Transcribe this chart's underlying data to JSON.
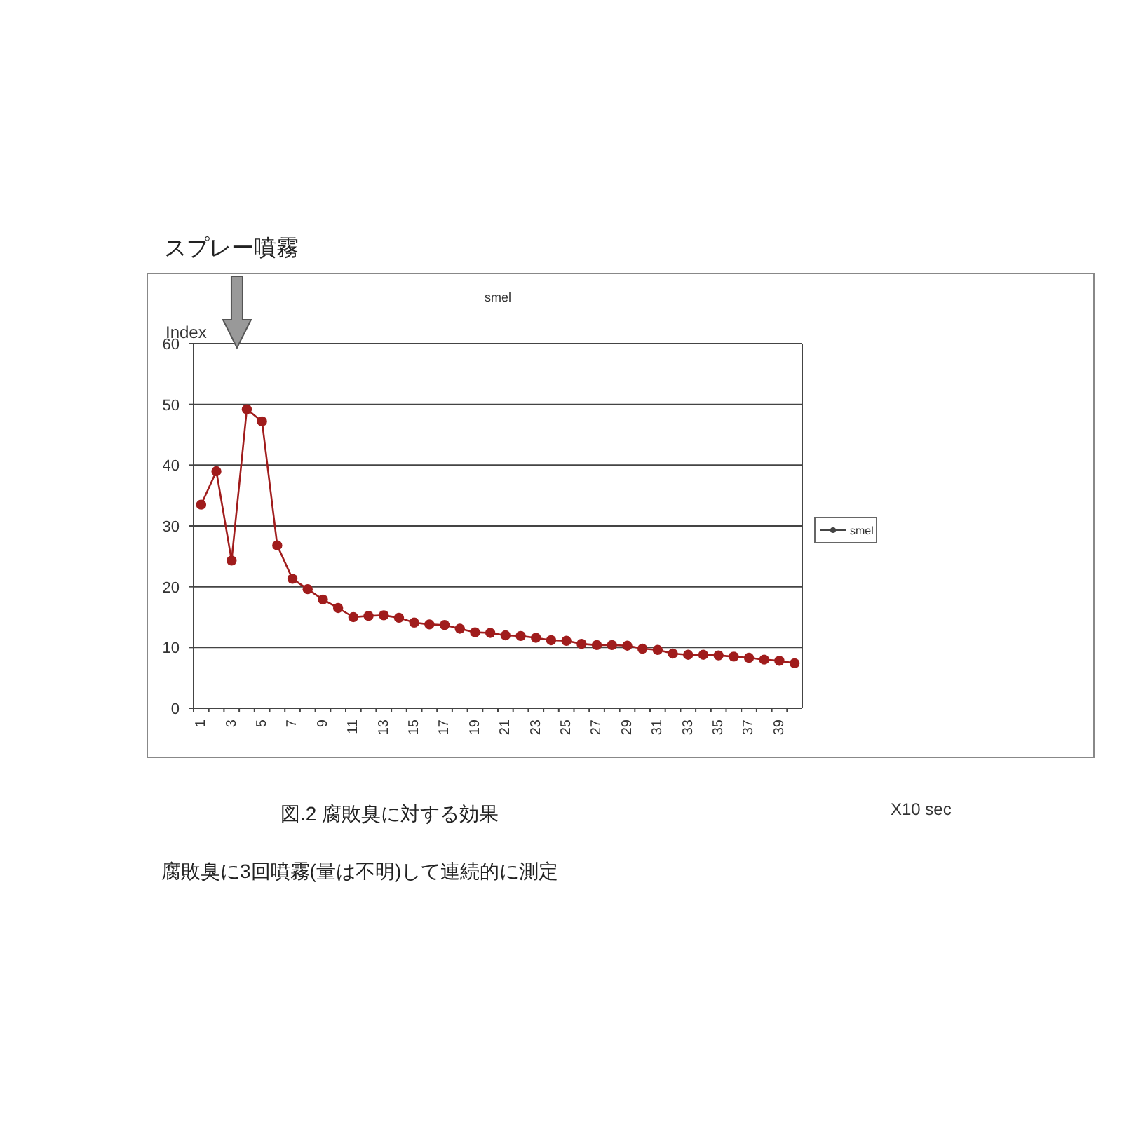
{
  "chart_data": {
    "type": "line",
    "title": "smel",
    "ylabel": "Index",
    "annotations": [
      "スプレー噴霧",
      "図.2  腐敗臭に対する効果",
      "腐敗臭に3回噴霧(量は不明)して連続的に測定",
      "X10 sec"
    ],
    "categories": [
      "1",
      null,
      "3",
      null,
      "5",
      null,
      "7",
      null,
      "9",
      null,
      "11",
      null,
      "13",
      null,
      "15",
      null,
      "17",
      null,
      "19",
      null,
      "21",
      null,
      "23",
      null,
      "25",
      null,
      "27",
      null,
      "29",
      null,
      "31",
      null,
      "33",
      null,
      "35",
      null,
      "37",
      null,
      "39",
      null
    ],
    "series": [
      {
        "name": "smel",
        "color": "#a01c1c",
        "values": [
          33.5,
          39,
          24.3,
          49.2,
          47.2,
          26.8,
          21.3,
          19.6,
          17.9,
          16.5,
          15,
          15.2,
          15.3,
          14.9,
          14.1,
          13.8,
          13.7,
          13.1,
          12.5,
          12.4,
          12,
          11.9,
          11.6,
          11.2,
          11.1,
          10.6,
          10.4,
          10.4,
          10.3,
          9.8,
          9.6,
          9,
          8.8,
          8.8,
          8.7,
          8.5,
          8.3,
          8,
          7.8,
          7.4
        ]
      }
    ],
    "ylim": [
      0,
      60
    ],
    "yticks": [
      0,
      10,
      20,
      30,
      40,
      50,
      60
    ],
    "grid": "y",
    "legend": "right",
    "marker": "circle",
    "line_style": "solid"
  }
}
